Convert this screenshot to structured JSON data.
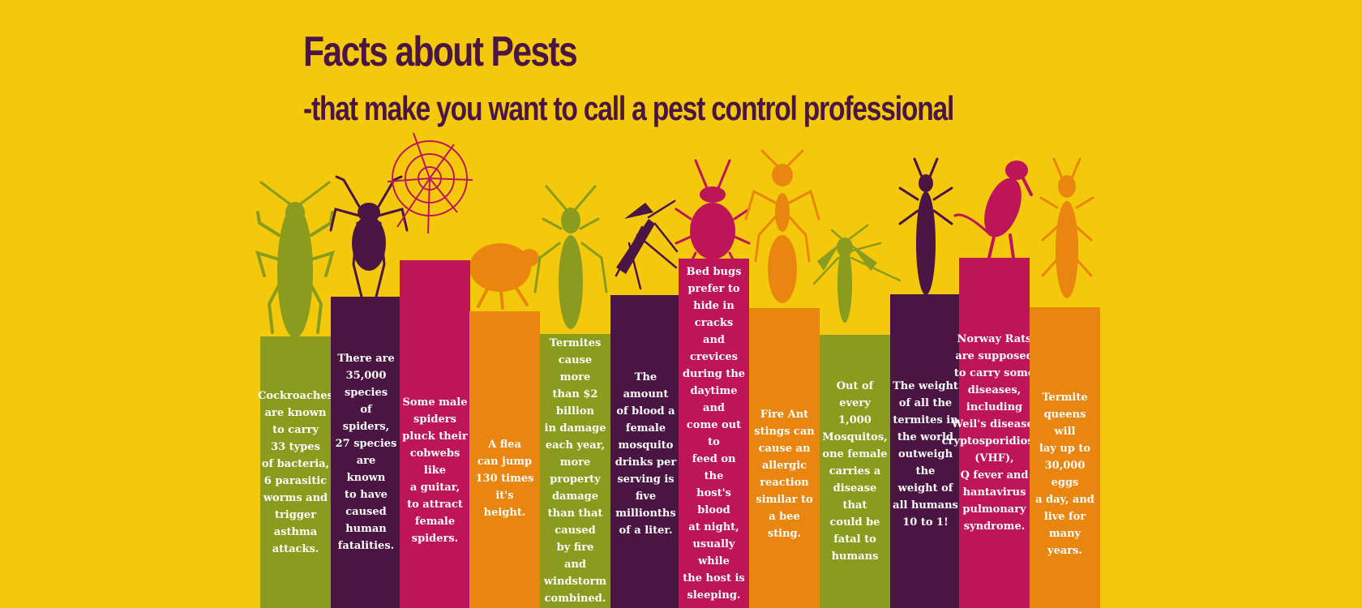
{
  "header": {
    "title": "Facts about Pests",
    "subtitle": "-that make you want to call a pest control professional"
  },
  "colors": {
    "background": "#F4C90C",
    "olive": "#8A9C1E",
    "plum": "#4A1543",
    "magenta": "#BE1558",
    "orange": "#E8860F"
  },
  "facts": [
    {
      "pest": "cockroach-icon",
      "color": "olive",
      "text": "Cockroaches\nare known\nto carry\n33 types\nof bacteria,\n6 parasitic\nworms and\ntrigger\nasthma\nattacks."
    },
    {
      "pest": "spider-icon",
      "color": "plum",
      "text": "There are\n35,000\nspecies\nof\nspiders,\n27 species\nare\nknown\nto have\ncaused\nhuman\nfatalities."
    },
    {
      "pest": "spider-web-icon",
      "color": "magenta",
      "text": "Some male\nspiders\npluck their\ncobwebs like\na guitar,\nto attract\nfemale\nspiders."
    },
    {
      "pest": "flea-icon",
      "color": "orange",
      "text": "A flea\ncan jump\n130 times\nit's\nheight."
    },
    {
      "pest": "termite-icon",
      "color": "olive",
      "text": "Termites\ncause more\nthan $2 billion\nin damage\neach year,\nmore property\ndamage\nthan that\ncaused\nby fire\nand windstorm\ncombined."
    },
    {
      "pest": "mosquito-icon",
      "color": "plum",
      "text": "The amount\nof blood a\nfemale\nmosquito\ndrinks per\nserving is\nfive\nmillionths\nof a liter."
    },
    {
      "pest": "bed-bug-icon",
      "color": "magenta",
      "text": "Bed bugs\nprefer to\nhide in cracks\nand crevices\nduring the\ndaytime and\ncome out to\nfeed on the\nhost's blood\nat night,\nusually while\nthe host is\nsleeping."
    },
    {
      "pest": "fire-ant-icon",
      "color": "orange",
      "text": "Fire Ant\nstings can\ncause an\nallergic\nreaction\nsimilar to\na bee sting."
    },
    {
      "pest": "mosquito-icon",
      "color": "olive",
      "text": "Out of every\n1,000\nMosquitos,\none female\ncarries a\ndisease that\ncould be\nfatal to\nhumans"
    },
    {
      "pest": "termite-icon",
      "color": "plum",
      "text": "The weight\nof all the\ntermites in\nthe world\noutweigh the\nweight of\nall humans\n10 to 1!"
    },
    {
      "pest": "rat-icon",
      "color": "magenta",
      "text": "Norway Rats\nare supposed\nto carry some\ndiseases,\nincluding\nWeil's disease,\ncryptosporidiosis,\n(VHF),\nQ fever and\nhantavirus\npulmonary\nsyndrome."
    },
    {
      "pest": "termite-queen-icon",
      "color": "orange",
      "text": "Termite\nqueens will\nlay up to\n30,000 eggs\na day, and\nlive for\nmany years."
    }
  ]
}
